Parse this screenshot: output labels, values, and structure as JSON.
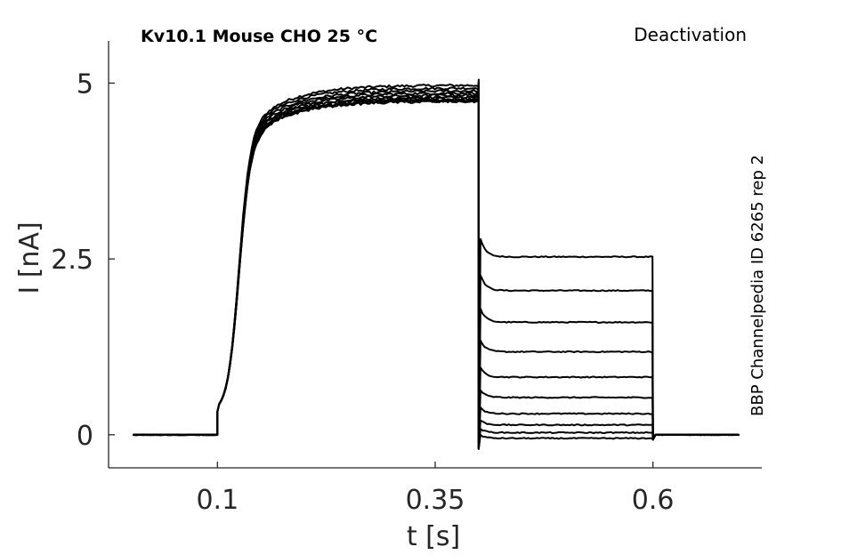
{
  "chart_data": {
    "type": "line",
    "title": "Kv10.1  Mouse  CHO  25 °C",
    "protocol_label": "Deactivation",
    "side_label": "BBP Channelpedia ID 6265 rep 2",
    "xlabel": "t [s]",
    "ylabel": "I [nA]",
    "xlim": [
      -0.025,
      0.725
    ],
    "ylim": [
      -0.47,
      5.6
    ],
    "xticks": [
      0.1,
      0.35,
      0.6
    ],
    "xtick_labels": [
      "0.1",
      "0.35",
      "0.6"
    ],
    "yticks": [
      0,
      2.5,
      5
    ],
    "ytick_labels": [
      "0",
      "2.5",
      "5"
    ],
    "grid": false,
    "legend": "none",
    "trace_color": "#000000",
    "protocol": {
      "baseline_start": 0.003,
      "step_on": 0.1,
      "step_off": 0.4,
      "tail_off": 0.6,
      "end": 0.7
    },
    "series": [
      {
        "values": {
          "plateau": 4.97,
          "tail_steady": 2.53
        }
      },
      {
        "values": {
          "plateau": 4.93,
          "tail_steady": 2.05
        }
      },
      {
        "values": {
          "plateau": 4.89,
          "tail_steady": 1.6
        }
      },
      {
        "values": {
          "plateau": 4.86,
          "tail_steady": 1.18
        }
      },
      {
        "values": {
          "plateau": 4.83,
          "tail_steady": 0.82
        }
      },
      {
        "values": {
          "plateau": 4.8,
          "tail_steady": 0.53
        }
      },
      {
        "values": {
          "plateau": 4.78,
          "tail_steady": 0.3
        }
      },
      {
        "values": {
          "plateau": 4.76,
          "tail_steady": 0.14
        }
      },
      {
        "values": {
          "plateau": 4.75,
          "tail_steady": 0.03
        }
      },
      {
        "values": {
          "plateau": 4.74,
          "tail_steady": -0.05
        }
      }
    ]
  }
}
